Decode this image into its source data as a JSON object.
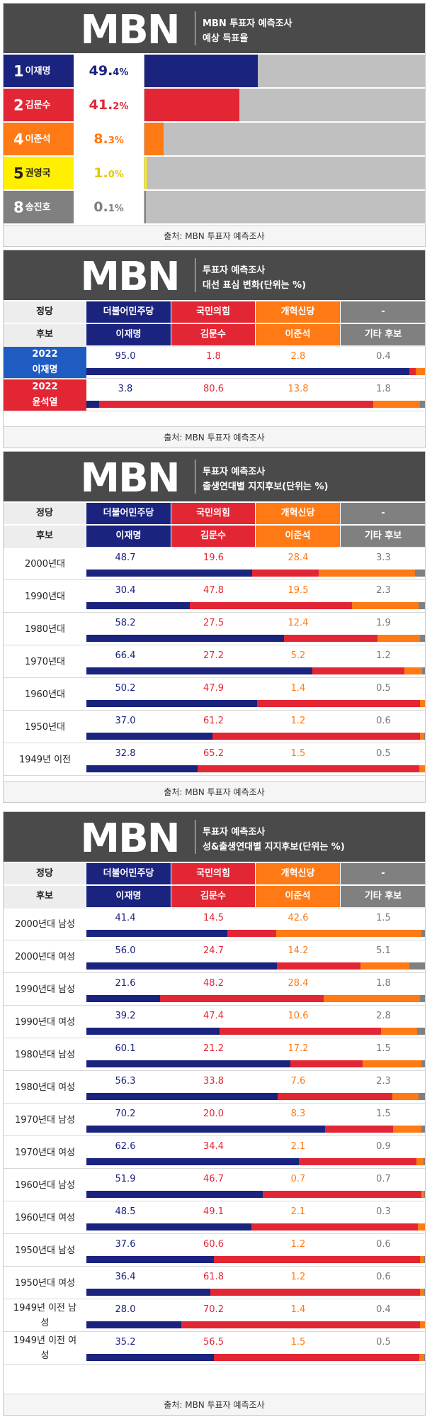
{
  "colors": {
    "dem": "#1a237e",
    "ppp": "#e32634",
    "reform": "#ff7a14",
    "yellow": "#ffef00",
    "gray": "#808080",
    "gray_light": "#c0c0c0",
    "header": "#4a4a4a"
  },
  "logo_text": "MBN",
  "source": "출처: MBN 투표자 예측조사",
  "party_row_label": "정당",
  "candidate_row_label": "후보",
  "parties": [
    "더불어민주당",
    "국민의힘",
    "개혁신당",
    "-"
  ],
  "candidates": [
    "이재명",
    "김문수",
    "이준석",
    "기타 후보"
  ],
  "panel1": {
    "title1": "MBN 투표자 예측조사",
    "title2": "예상 득표율",
    "chart_data": {
      "type": "bar",
      "categories": [
        "이재명",
        "김문수",
        "이준석",
        "권영국",
        "송진호"
      ],
      "numbers": [
        "1",
        "2",
        "4",
        "5",
        "8"
      ],
      "values": [
        49.4,
        41.2,
        8.3,
        1.0,
        0.1
      ],
      "value_int": [
        "49.",
        "41.",
        "8.",
        "1.",
        "0."
      ],
      "value_dec": [
        "4%",
        "2%",
        "3%",
        "0%",
        "1%"
      ],
      "colors": [
        "#1a237e",
        "#e32634",
        "#ff7a14",
        "#ffef00",
        "#808080"
      ],
      "ylim": [
        0,
        100
      ]
    }
  },
  "panel2": {
    "title1": "투표자 예측조사",
    "title2": "대선 표심 변화(단위는 %)",
    "chart_data": {
      "type": "bar",
      "stacked": true,
      "categories": [
        [
          "2022",
          "이재명"
        ],
        [
          "2022",
          "윤석열"
        ]
      ],
      "series": [
        {
          "values": [
            95.0,
            3.8
          ]
        },
        {
          "values": [
            1.8,
            80.6
          ]
        },
        {
          "values": [
            2.8,
            13.8
          ]
        },
        {
          "values": [
            0.4,
            1.8
          ]
        }
      ]
    }
  },
  "panel3": {
    "title1": "투표자 예측조사",
    "title2": "출생연대별 지지후보(단위는 %)",
    "chart_data": {
      "type": "bar",
      "stacked": true,
      "categories": [
        "2000년대",
        "1990년대",
        "1980년대",
        "1970년대",
        "1960년대",
        "1950년대",
        "1949년 이전"
      ],
      "series": [
        {
          "values": [
            48.7,
            30.4,
            58.2,
            66.4,
            50.2,
            37.0,
            32.8
          ]
        },
        {
          "values": [
            19.6,
            47.8,
            27.5,
            27.2,
            47.9,
            61.2,
            65.2
          ]
        },
        {
          "values": [
            28.4,
            19.5,
            12.4,
            5.2,
            1.4,
            1.2,
            1.5
          ]
        },
        {
          "values": [
            3.3,
            2.3,
            1.9,
            1.2,
            0.5,
            0.6,
            0.5
          ]
        }
      ]
    }
  },
  "panel4": {
    "title1": "투표자 예측조사",
    "title2": "성&출생연대별 지지후보(단위는 %)",
    "chart_data": {
      "type": "bar",
      "stacked": true,
      "categories": [
        [
          "2000년대 남성"
        ],
        [
          "2000년대 여성"
        ],
        [
          "1990년대 남성"
        ],
        [
          "1990년대 여성"
        ],
        [
          "1980년대 남성"
        ],
        [
          "1980년대 여성"
        ],
        [
          "1970년대 남성"
        ],
        [
          "1970년대 여성"
        ],
        [
          "1960년대 남성"
        ],
        [
          "1960년대 여성"
        ],
        [
          "1950년대 남성"
        ],
        [
          "1950년대 여성"
        ],
        [
          "1949년 이전 남",
          "성"
        ],
        [
          "1949년 이전 여",
          "성"
        ]
      ],
      "series": [
        {
          "values": [
            41.4,
            56.0,
            21.6,
            39.2,
            60.1,
            56.3,
            70.2,
            62.6,
            51.9,
            48.5,
            37.6,
            36.4,
            28.0,
            35.2
          ]
        },
        {
          "values": [
            14.5,
            24.7,
            48.2,
            47.4,
            21.2,
            33.8,
            20.0,
            34.4,
            46.7,
            49.1,
            60.6,
            61.8,
            70.2,
            56.5
          ]
        },
        {
          "values": [
            42.6,
            14.2,
            28.4,
            10.6,
            17.2,
            7.6,
            8.3,
            2.1,
            0.7,
            2.1,
            1.2,
            1.2,
            1.4,
            1.5
          ]
        },
        {
          "values": [
            1.5,
            5.1,
            1.8,
            2.8,
            1.5,
            2.3,
            1.5,
            0.9,
            0.7,
            0.3,
            0.6,
            0.6,
            0.4,
            0.5
          ]
        }
      ]
    }
  }
}
